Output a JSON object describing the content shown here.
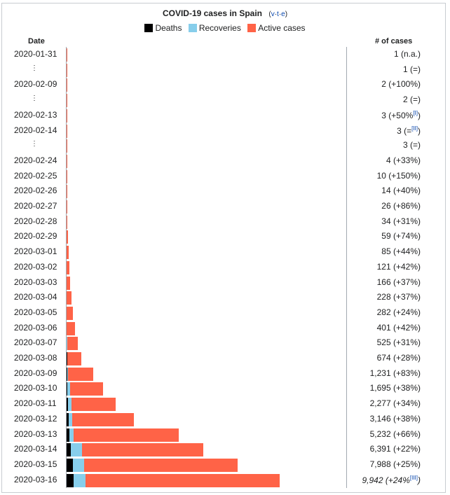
{
  "title": "COVID-19 cases in Spain",
  "vte": {
    "v": "v",
    "t": "t",
    "e": "e"
  },
  "legend": [
    {
      "label": "Deaths",
      "color": "#000000"
    },
    {
      "label": "Recoveries",
      "color": "#87ceeb"
    },
    {
      "label": "Active cases",
      "color": "#ff6347"
    }
  ],
  "headers": {
    "date": "Date",
    "cases": "# of cases"
  },
  "chart_data": {
    "type": "bar",
    "orientation": "horizontal",
    "stacked": true,
    "title": "COVID-19 cases in Spain",
    "xlim": [
      0,
      9942
    ],
    "series_names": [
      "Deaths",
      "Recoveries",
      "Active cases"
    ],
    "rows": [
      {
        "date": "2020-01-31",
        "cases_label": "1 (n.a.)",
        "deaths": 0,
        "recoveries": 0,
        "active": 1
      },
      {
        "date": "⋮",
        "cases_label": "1 (=)",
        "deaths": 0,
        "recoveries": 0,
        "active": 1
      },
      {
        "date": "2020-02-09",
        "cases_label": "2 (+100%)",
        "deaths": 0,
        "recoveries": 0,
        "active": 2
      },
      {
        "date": "⋮",
        "cases_label": "2 (=)",
        "deaths": 0,
        "recoveries": 0,
        "active": 2
      },
      {
        "date": "2020-02-13",
        "cases_label": "3 (+50%",
        "note": "[I]",
        "close": ")",
        "deaths": 0,
        "recoveries": 0,
        "active": 3
      },
      {
        "date": "2020-02-14",
        "cases_label": "3 (=",
        "note": "[II]",
        "close": ")",
        "deaths": 0,
        "recoveries": 0,
        "active": 3
      },
      {
        "date": "⋮",
        "cases_label": "3 (=)",
        "deaths": 0,
        "recoveries": 0,
        "active": 3
      },
      {
        "date": "2020-02-24",
        "cases_label": "4 (+33%)",
        "deaths": 0,
        "recoveries": 0,
        "active": 4
      },
      {
        "date": "2020-02-25",
        "cases_label": "10 (+150%)",
        "deaths": 0,
        "recoveries": 0,
        "active": 10
      },
      {
        "date": "2020-02-26",
        "cases_label": "14 (+40%)",
        "deaths": 0,
        "recoveries": 0,
        "active": 14
      },
      {
        "date": "2020-02-27",
        "cases_label": "26 (+86%)",
        "deaths": 0,
        "recoveries": 0,
        "active": 26
      },
      {
        "date": "2020-02-28",
        "cases_label": "34 (+31%)",
        "deaths": 0,
        "recoveries": 0,
        "active": 34
      },
      {
        "date": "2020-02-29",
        "cases_label": "59 (+74%)",
        "deaths": 0,
        "recoveries": 0,
        "active": 59
      },
      {
        "date": "2020-03-01",
        "cases_label": "85 (+44%)",
        "deaths": 0,
        "recoveries": 0,
        "active": 85
      },
      {
        "date": "2020-03-02",
        "cases_label": "121 (+42%)",
        "deaths": 0,
        "recoveries": 2,
        "active": 119
      },
      {
        "date": "2020-03-03",
        "cases_label": "166 (+37%)",
        "deaths": 1,
        "recoveries": 2,
        "active": 163
      },
      {
        "date": "2020-03-04",
        "cases_label": "228 (+37%)",
        "deaths": 2,
        "recoveries": 2,
        "active": 224
      },
      {
        "date": "2020-03-05",
        "cases_label": "282 (+24%)",
        "deaths": 3,
        "recoveries": 2,
        "active": 277
      },
      {
        "date": "2020-03-06",
        "cases_label": "401 (+42%)",
        "deaths": 8,
        "recoveries": 2,
        "active": 391
      },
      {
        "date": "2020-03-07",
        "cases_label": "525 (+31%)",
        "deaths": 10,
        "recoveries": 30,
        "active": 485
      },
      {
        "date": "2020-03-08",
        "cases_label": "674 (+28%)",
        "deaths": 17,
        "recoveries": 30,
        "active": 627
      },
      {
        "date": "2020-03-09",
        "cases_label": "1,231 (+83%)",
        "deaths": 30,
        "recoveries": 32,
        "active": 1169
      },
      {
        "date": "2020-03-10",
        "cases_label": "1,695 (+38%)",
        "deaths": 36,
        "recoveries": 135,
        "active": 1524
      },
      {
        "date": "2020-03-11",
        "cases_label": "2,277 (+34%)",
        "deaths": 55,
        "recoveries": 183,
        "active": 2039
      },
      {
        "date": "2020-03-12",
        "cases_label": "3,146 (+38%)",
        "deaths": 86,
        "recoveries": 189,
        "active": 2871
      },
      {
        "date": "2020-03-13",
        "cases_label": "5,232 (+66%)",
        "deaths": 133,
        "recoveries": 193,
        "active": 4906
      },
      {
        "date": "2020-03-14",
        "cases_label": "6,391 (+22%)",
        "deaths": 195,
        "recoveries": 517,
        "active": 5679
      },
      {
        "date": "2020-03-15",
        "cases_label": "7,988 (+25%)",
        "deaths": 294,
        "recoveries": 517,
        "active": 7177
      },
      {
        "date": "2020-03-16",
        "cases_label": "9,942 (+24%",
        "note": "[III]",
        "close": ")",
        "italic": true,
        "deaths": 342,
        "recoveries": 530,
        "active": 9070
      }
    ]
  }
}
